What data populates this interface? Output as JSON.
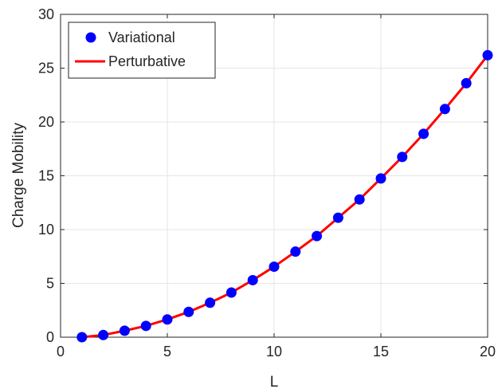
{
  "chart_data": {
    "type": "line",
    "title": "",
    "xlabel": "L",
    "ylabel": "Charge Mobility",
    "xlim": [
      0,
      20
    ],
    "ylim": [
      0,
      30
    ],
    "xticks": [
      0,
      5,
      10,
      15,
      20
    ],
    "yticks": [
      0,
      5,
      10,
      15,
      20,
      25,
      30
    ],
    "grid": true,
    "legend_position": "top-left",
    "series": [
      {
        "name": "Variational",
        "style": "markers",
        "color": "#0000ff",
        "x": [
          1,
          2,
          3,
          4,
          5,
          6,
          7,
          8,
          9,
          10,
          11,
          12,
          13,
          14,
          15,
          16,
          17,
          18,
          19,
          20
        ],
        "y": [
          0.0,
          0.2,
          0.6,
          1.05,
          1.65,
          2.35,
          3.2,
          4.15,
          5.3,
          6.55,
          7.95,
          9.4,
          11.1,
          12.8,
          14.75,
          16.75,
          18.9,
          21.2,
          23.6,
          26.2
        ]
      },
      {
        "name": "Perturbative",
        "style": "line",
        "color": "#ff0000",
        "x": [
          1,
          2,
          3,
          4,
          5,
          6,
          7,
          8,
          9,
          10,
          11,
          12,
          13,
          14,
          15,
          16,
          17,
          18,
          19,
          20
        ],
        "y": [
          0.0,
          0.2,
          0.6,
          1.05,
          1.65,
          2.35,
          3.2,
          4.15,
          5.3,
          6.55,
          7.95,
          9.4,
          11.1,
          12.8,
          14.75,
          16.75,
          18.9,
          21.2,
          23.6,
          26.2
        ]
      }
    ]
  }
}
